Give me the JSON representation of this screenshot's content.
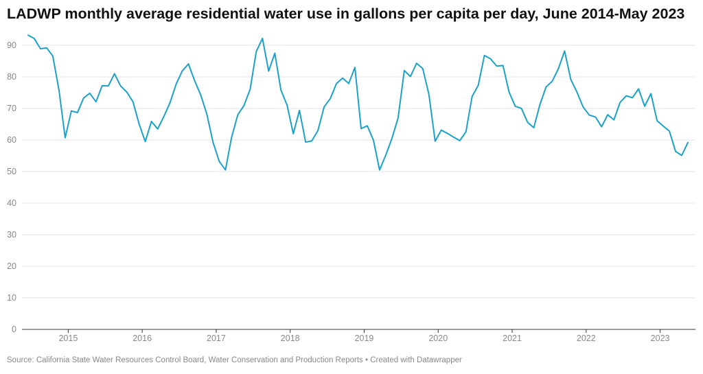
{
  "chart_data": {
    "type": "line",
    "title": "LADWP monthly average residential water use in gallons per capita per day, June 2014-May 2023",
    "xlabel": "",
    "ylabel": "",
    "ylim": [
      0,
      95
    ],
    "yticks": [
      0,
      10,
      20,
      30,
      40,
      50,
      60,
      70,
      80,
      90
    ],
    "xticks": [
      "2015",
      "2016",
      "2017",
      "2018",
      "2019",
      "2020",
      "2021",
      "2022",
      "2023"
    ],
    "x_start": "2014-06",
    "x_end": "2023-05",
    "grid": "horizontal",
    "series": [
      {
        "color": "#1aa1c8",
        "values": [
          93.2,
          92.1,
          88.9,
          89.2,
          86.6,
          75.8,
          60.7,
          69.2,
          68.7,
          73.3,
          74.8,
          72.1,
          77.2,
          77.1,
          81.0,
          77.1,
          75.2,
          72.1,
          65.0,
          59.5,
          65.9,
          63.5,
          67.4,
          71.8,
          77.7,
          81.9,
          84.1,
          78.8,
          74.2,
          68.0,
          59.2,
          53.2,
          50.5,
          60.9,
          68.0,
          70.9,
          76.0,
          88.0,
          92.2,
          81.8,
          87.5,
          75.8,
          71.0,
          62.0,
          69.4,
          59.3,
          59.7,
          63.0,
          70.5,
          73.1,
          77.9,
          79.6,
          77.9,
          83.0,
          63.6,
          64.5,
          59.9,
          50.5,
          55.2,
          60.5,
          67.0,
          82.0,
          80.1,
          84.3,
          82.6,
          74.4,
          59.6,
          63.1,
          62.1,
          60.9,
          59.8,
          62.6,
          73.8,
          77.3,
          86.8,
          85.7,
          83.4,
          83.6,
          75.2,
          70.7,
          70.0,
          65.6,
          63.9,
          71.2,
          76.8,
          78.6,
          82.6,
          88.2,
          79.2,
          75.2,
          70.5,
          67.9,
          67.3,
          64.2,
          68.0,
          66.4,
          71.9,
          74.0,
          73.4,
          76.2,
          70.7,
          74.7,
          66.1,
          64.4,
          62.8,
          56.4,
          55.1,
          59.2
        ]
      }
    ]
  },
  "footer": {
    "source": "Source: California State Water Resources Control Board, Water Conservation and Production Reports • Created with Datawrapper"
  }
}
